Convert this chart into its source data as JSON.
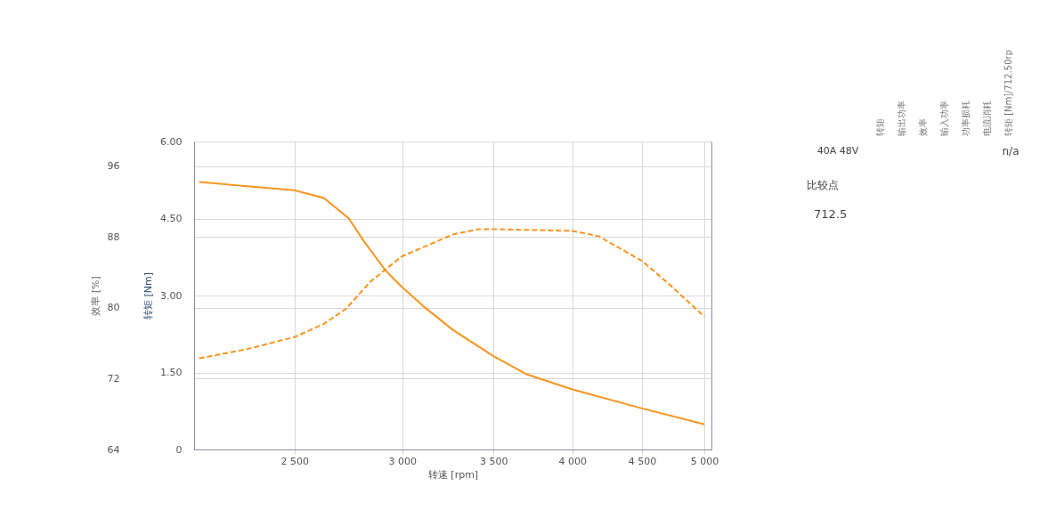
{
  "chart_data": {
    "type": "line",
    "xlabel": "转速 [rpm]",
    "ylabel": "转矩 [Nm]",
    "y2label": "效率 [%]",
    "log": "x",
    "grid": true,
    "marker": "none",
    "xlim": [
      2110,
      5060
    ],
    "xticks": [
      {
        "value": 2500,
        "label": "2 500"
      },
      {
        "value": 3000,
        "label": "3 000"
      },
      {
        "value": 3500,
        "label": "3 500"
      },
      {
        "value": 4000,
        "label": "4 000"
      },
      {
        "value": 4500,
        "label": "4 500"
      },
      {
        "value": 5000,
        "label": "5 000"
      }
    ],
    "ylim": [
      0,
      6
    ],
    "yticks": [
      0,
      {
        "value": 1.5,
        "label": "1.50"
      },
      {
        "value": 3,
        "label": "3.00"
      },
      {
        "value": 4.5,
        "label": "4.50"
      },
      {
        "value": 6,
        "label": "6.00"
      }
    ],
    "y2lim": [
      64,
      98.8
    ],
    "y2ticks": [
      64,
      72,
      80,
      88,
      96
    ],
    "series": [
      {
        "color": "#f7941d",
        "line_style": "solid",
        "x": [
          2128,
          2500,
          2628,
          2741,
          2811,
          2916,
          2989,
          3109,
          3268,
          3500,
          3706,
          4000,
          4500,
          5000
        ],
        "values": [
          5.21,
          5.05,
          4.9,
          4.5,
          4.06,
          3.49,
          3.2,
          2.79,
          2.33,
          1.82,
          1.46,
          1.17,
          0.8,
          0.49
        ]
      },
      {
        "color": "#f7941d",
        "line_style": "dashed",
        "axis": "y2",
        "x": [
          2128,
          2301,
          2500,
          2628,
          2728,
          2840,
          2996,
          3268,
          3415,
          3500,
          4000,
          4181,
          4500,
          4717,
          5000
        ],
        "values": [
          74.3,
          75.3,
          76.7,
          78.2,
          79.9,
          82.9,
          85.8,
          88.3,
          88.9,
          88.9,
          88.7,
          88.1,
          85.3,
          82.6,
          79.0
        ]
      }
    ],
    "annotations": [
      "40A  48V",
      "转矩",
      "输出功率",
      "效率",
      "输入功率",
      "功率损耗",
      "电流消耗",
      "转矩 [Nm]/712.50rp",
      "n/a",
      "比较点",
      "712.5"
    ]
  }
}
